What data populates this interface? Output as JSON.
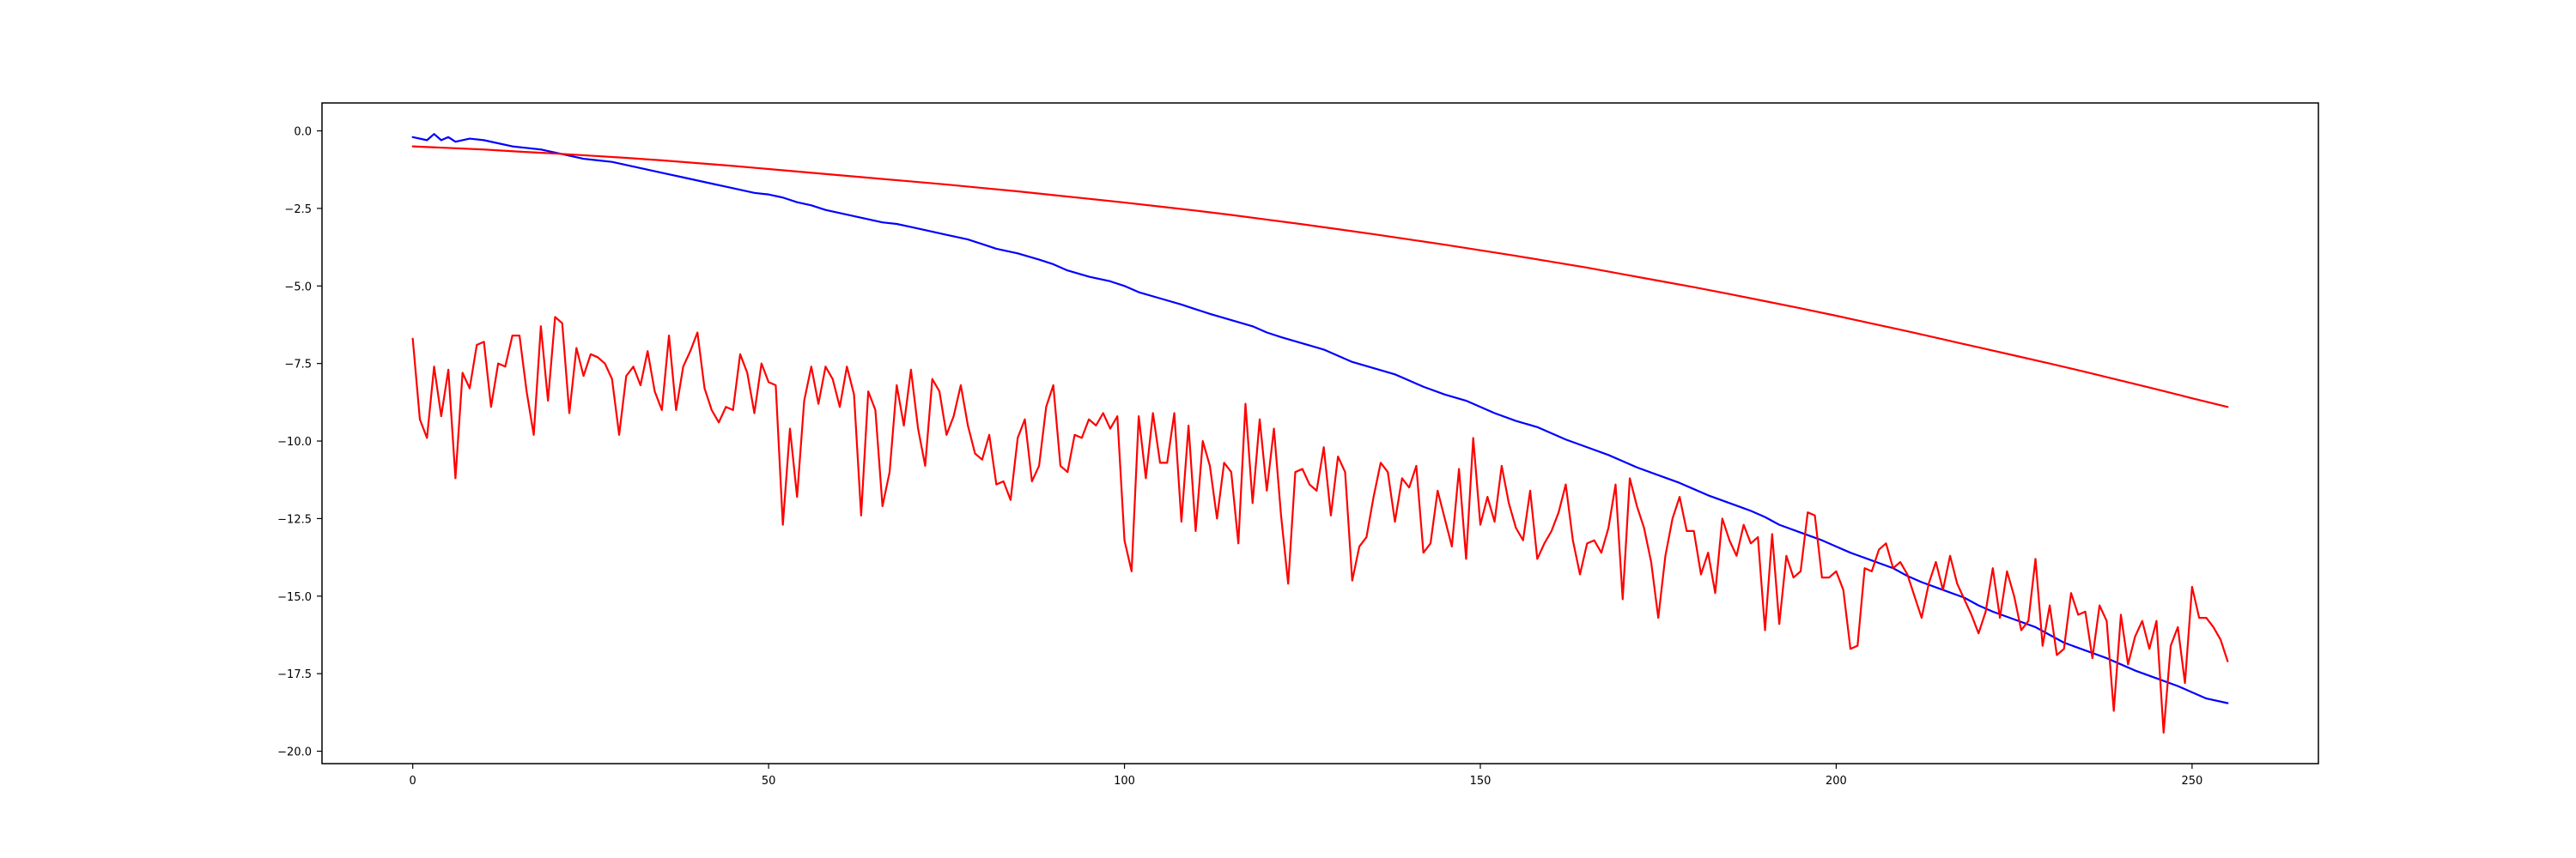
{
  "chart_data": {
    "type": "line",
    "title": "",
    "xlabel": "",
    "ylabel": "",
    "xlim": [
      -12.75,
      267.75
    ],
    "ylim": [
      -20.4,
      0.9
    ],
    "xticks": [
      0,
      50,
      100,
      150,
      200,
      250
    ],
    "xtick_labels": [
      "0",
      "50",
      "100",
      "150",
      "200",
      "250"
    ],
    "yticks": [
      0.0,
      -2.5,
      -5.0,
      -7.5,
      -10.0,
      -12.5,
      -15.0,
      -17.5,
      -20.0
    ],
    "ytick_labels": [
      "0.0",
      "−2.5",
      "−5.0",
      "−7.5",
      "−10.0",
      "−12.5",
      "−15.0",
      "−17.5",
      "−20.0"
    ],
    "grid": false,
    "legend": false,
    "series": [
      {
        "color": "#0000ff",
        "x": [
          0,
          2,
          3,
          4,
          5,
          6,
          8,
          10,
          12,
          14,
          16,
          18,
          20,
          22,
          24,
          26,
          28,
          30,
          32,
          34,
          36,
          38,
          40,
          42,
          44,
          46,
          48,
          50,
          52,
          54,
          56,
          58,
          60,
          62,
          64,
          66,
          68,
          70,
          72,
          75,
          78,
          80,
          82,
          85,
          88,
          90,
          92,
          95,
          98,
          100,
          102,
          105,
          108,
          110,
          112,
          115,
          118,
          120,
          122,
          125,
          128,
          130,
          132,
          135,
          138,
          140,
          142,
          145,
          148,
          150,
          152,
          155,
          158,
          160,
          162,
          165,
          168,
          170,
          172,
          175,
          178,
          180,
          182,
          185,
          188,
          190,
          192,
          195,
          198,
          200,
          202,
          205,
          208,
          210,
          212,
          215,
          218,
          220,
          222,
          225,
          228,
          230,
          232,
          235,
          238,
          240,
          242,
          245,
          248,
          250,
          252,
          255
        ],
        "y": [
          -0.2,
          -0.3,
          -0.1,
          -0.3,
          -0.2,
          -0.35,
          -0.25,
          -0.3,
          -0.4,
          -0.5,
          -0.55,
          -0.6,
          -0.7,
          -0.8,
          -0.9,
          -0.95,
          -1.0,
          -1.1,
          -1.2,
          -1.3,
          -1.4,
          -1.5,
          -1.6,
          -1.7,
          -1.8,
          -1.9,
          -2.0,
          -2.05,
          -2.15,
          -2.3,
          -2.4,
          -2.55,
          -2.65,
          -2.75,
          -2.85,
          -2.95,
          -3.0,
          -3.1,
          -3.2,
          -3.35,
          -3.5,
          -3.65,
          -3.8,
          -3.95,
          -4.15,
          -4.3,
          -4.5,
          -4.7,
          -4.85,
          -5.0,
          -5.2,
          -5.4,
          -5.6,
          -5.75,
          -5.9,
          -6.1,
          -6.3,
          -6.5,
          -6.65,
          -6.85,
          -7.05,
          -7.25,
          -7.45,
          -7.65,
          -7.85,
          -8.05,
          -8.25,
          -8.5,
          -8.7,
          -8.9,
          -9.1,
          -9.35,
          -9.55,
          -9.75,
          -9.95,
          -10.2,
          -10.45,
          -10.65,
          -10.85,
          -11.1,
          -11.35,
          -11.55,
          -11.75,
          -12.0,
          -12.25,
          -12.45,
          -12.7,
          -12.95,
          -13.2,
          -13.4,
          -13.6,
          -13.85,
          -14.1,
          -14.35,
          -14.55,
          -14.8,
          -15.05,
          -15.3,
          -15.5,
          -15.75,
          -16.0,
          -16.25,
          -16.5,
          -16.75,
          -17.0,
          -17.2,
          -17.4,
          -17.65,
          -17.9,
          -18.1,
          -18.3,
          -18.45
        ]
      },
      {
        "color": "#ff0000",
        "x": [
          0,
          5,
          10,
          15,
          20,
          25,
          30,
          35,
          40,
          45,
          50,
          55,
          60,
          65,
          70,
          75,
          80,
          85,
          90,
          95,
          100,
          105,
          110,
          115,
          120,
          125,
          130,
          135,
          140,
          145,
          150,
          155,
          160,
          165,
          170,
          175,
          180,
          185,
          190,
          195,
          200,
          205,
          210,
          215,
          220,
          225,
          230,
          235,
          240,
          245,
          250,
          255
        ],
        "y": [
          -0.5,
          -0.55,
          -0.6,
          -0.67,
          -0.73,
          -0.8,
          -0.87,
          -0.95,
          -1.04,
          -1.13,
          -1.23,
          -1.33,
          -1.43,
          -1.53,
          -1.63,
          -1.73,
          -1.84,
          -1.95,
          -2.07,
          -2.19,
          -2.31,
          -2.44,
          -2.57,
          -2.71,
          -2.86,
          -3.01,
          -3.17,
          -3.33,
          -3.5,
          -3.67,
          -3.85,
          -4.03,
          -4.22,
          -4.41,
          -4.62,
          -4.83,
          -5.04,
          -5.26,
          -5.49,
          -5.72,
          -5.96,
          -6.21,
          -6.46,
          -6.72,
          -6.98,
          -7.24,
          -7.5,
          -7.77,
          -8.05,
          -8.33,
          -8.62,
          -8.9
        ]
      },
      {
        "color": "#ff0000",
        "x": [
          0,
          1,
          2,
          3,
          4,
          5,
          6,
          7,
          8,
          9,
          10,
          11,
          12,
          13,
          14,
          15,
          16,
          17,
          18,
          19,
          20,
          21,
          22,
          23,
          24,
          25,
          26,
          27,
          28,
          29,
          30,
          31,
          32,
          33,
          34,
          35,
          36,
          37,
          38,
          39,
          40,
          41,
          42,
          43,
          44,
          45,
          46,
          47,
          48,
          49,
          50,
          51,
          52,
          53,
          54,
          55,
          56,
          57,
          58,
          59,
          60,
          61,
          62,
          63,
          64,
          65,
          66,
          67,
          68,
          69,
          70,
          71,
          72,
          73,
          74,
          75,
          76,
          77,
          78,
          79,
          80,
          81,
          82,
          83,
          84,
          85,
          86,
          87,
          88,
          89,
          90,
          91,
          92,
          93,
          94,
          95,
          96,
          97,
          98,
          99,
          100,
          101,
          102,
          103,
          104,
          105,
          106,
          107,
          108,
          109,
          110,
          111,
          112,
          113,
          114,
          115,
          116,
          117,
          118,
          119,
          120,
          121,
          122,
          123,
          124,
          125,
          126,
          127,
          128,
          129,
          130,
          131,
          132,
          133,
          134,
          135,
          136,
          137,
          138,
          139,
          140,
          141,
          142,
          143,
          144,
          145,
          146,
          147,
          148,
          149,
          150,
          151,
          152,
          153,
          154,
          155,
          156,
          157,
          158,
          159,
          160,
          161,
          162,
          163,
          164,
          165,
          166,
          167,
          168,
          169,
          170,
          171,
          172,
          173,
          174,
          175,
          176,
          177,
          178,
          179,
          180,
          181,
          182,
          183,
          184,
          185,
          186,
          187,
          188,
          189,
          190,
          191,
          192,
          193,
          194,
          195,
          196,
          197,
          198,
          199,
          200,
          201,
          202,
          203,
          204,
          205,
          206,
          207,
          208,
          209,
          210,
          211,
          212,
          213,
          214,
          215,
          216,
          217,
          218,
          219,
          220,
          221,
          222,
          223,
          224,
          225,
          226,
          227,
          228,
          229,
          230,
          231,
          232,
          233,
          234,
          235,
          236,
          237,
          238,
          239,
          240,
          241,
          242,
          243,
          244,
          245,
          246,
          247,
          248,
          249,
          250,
          251,
          252,
          253,
          254,
          255
        ],
        "y": [
          -6.7,
          -9.3,
          -9.9,
          -7.6,
          -9.2,
          -7.7,
          -11.2,
          -7.8,
          -8.3,
          -6.9,
          -6.8,
          -8.9,
          -7.5,
          -7.6,
          -6.6,
          -6.6,
          -8.4,
          -9.8,
          -6.3,
          -8.7,
          -6.0,
          -6.2,
          -9.1,
          -7.0,
          -7.9,
          -7.2,
          -7.3,
          -7.5,
          -8.0,
          -9.8,
          -7.9,
          -7.6,
          -8.2,
          -7.1,
          -8.4,
          -9.0,
          -6.6,
          -9.0,
          -7.6,
          -7.1,
          -6.5,
          -8.3,
          -9.0,
          -9.4,
          -8.9,
          -9.0,
          -7.2,
          -7.8,
          -9.1,
          -7.5,
          -8.1,
          -8.2,
          -12.7,
          -9.6,
          -11.8,
          -8.7,
          -7.6,
          -8.8,
          -7.6,
          -8.0,
          -8.9,
          -7.6,
          -8.5,
          -12.4,
          -8.4,
          -9.0,
          -12.1,
          -11.0,
          -8.2,
          -9.5,
          -7.7,
          -9.6,
          -10.8,
          -8.0,
          -8.4,
          -9.8,
          -9.2,
          -8.2,
          -9.5,
          -10.4,
          -10.6,
          -9.8,
          -11.4,
          -11.3,
          -11.9,
          -9.9,
          -9.3,
          -11.3,
          -10.8,
          -8.9,
          -8.2,
          -10.8,
          -11.0,
          -9.8,
          -9.9,
          -9.3,
          -9.5,
          -9.1,
          -9.6,
          -9.2,
          -13.2,
          -14.2,
          -9.2,
          -11.2,
          -9.1,
          -10.7,
          -10.7,
          -9.1,
          -12.6,
          -9.5,
          -12.9,
          -10.0,
          -10.8,
          -12.5,
          -10.7,
          -11.0,
          -13.3,
          -8.8,
          -12.0,
          -9.3,
          -11.6,
          -9.6,
          -12.4,
          -14.6,
          -11.0,
          -10.9,
          -11.4,
          -11.6,
          -10.2,
          -12.4,
          -10.5,
          -11.0,
          -14.5,
          -13.4,
          -13.1,
          -11.8,
          -10.7,
          -11.0,
          -12.6,
          -11.2,
          -11.5,
          -10.8,
          -13.6,
          -13.3,
          -11.6,
          -12.5,
          -13.4,
          -10.9,
          -13.8,
          -9.9,
          -12.7,
          -11.8,
          -12.6,
          -10.8,
          -12.0,
          -12.8,
          -13.2,
          -11.6,
          -13.8,
          -13.3,
          -12.9,
          -12.3,
          -11.4,
          -13.2,
          -14.3,
          -13.3,
          -13.2,
          -13.6,
          -12.8,
          -11.4,
          -15.1,
          -11.2,
          -12.1,
          -12.8,
          -13.9,
          -15.7,
          -13.7,
          -12.5,
          -11.8,
          -12.9,
          -12.9,
          -14.3,
          -13.6,
          -14.9,
          -12.5,
          -13.2,
          -13.7,
          -12.7,
          -13.3,
          -13.1,
          -16.1,
          -13.0,
          -15.9,
          -13.7,
          -14.4,
          -14.2,
          -12.3,
          -12.4,
          -14.4,
          -14.4,
          -14.2,
          -14.8,
          -16.7,
          -16.6,
          -14.1,
          -14.2,
          -13.5,
          -13.3,
          -14.1,
          -13.9,
          -14.3,
          -15.0,
          -15.7,
          -14.6,
          -13.9,
          -14.8,
          -13.7,
          -14.6,
          -15.1,
          -15.6,
          -16.2,
          -15.5,
          -14.1,
          -15.7,
          -14.2,
          -15.0,
          -16.1,
          -15.8,
          -13.8,
          -16.6,
          -15.3,
          -16.9,
          -16.7,
          -14.9,
          -15.6,
          -15.5,
          -17.0,
          -15.3,
          -15.8,
          -18.7,
          -15.6,
          -17.2,
          -16.3,
          -15.8,
          -16.7,
          -15.8,
          -19.4,
          -16.6,
          -16.0,
          -17.8,
          -14.7,
          -15.7,
          -15.7,
          -16.0,
          -16.4,
          -17.1
        ]
      }
    ]
  }
}
